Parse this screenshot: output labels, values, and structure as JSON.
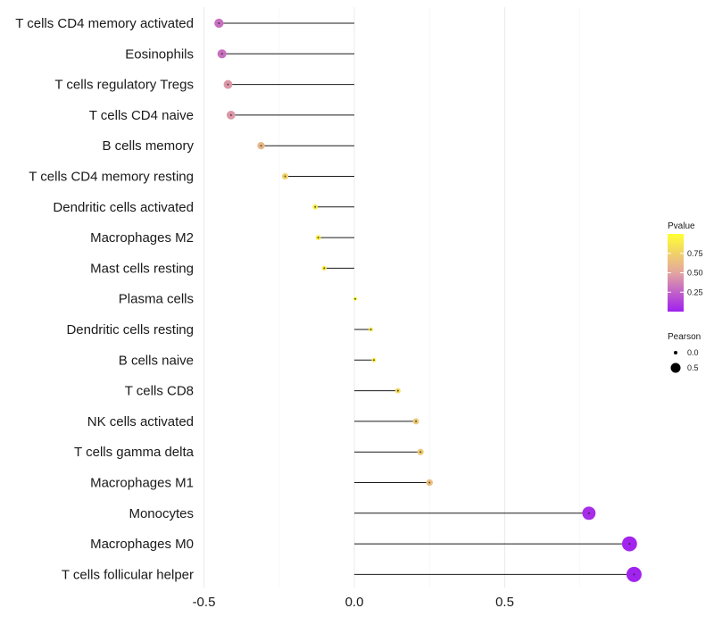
{
  "chart_data": {
    "type": "lollipop",
    "title": "",
    "xlabel": "",
    "ylabel": "",
    "xlim": [
      -0.5,
      0.95
    ],
    "x_ticks": [
      -0.5,
      0.0,
      0.5
    ],
    "x_tick_labels": [
      "-0.5",
      "0.0",
      "0.5"
    ],
    "grid": true,
    "categories": [
      "T cells CD4 memory activated",
      "Eosinophils",
      "T cells regulatory  Tregs ",
      "T cells CD4 naive",
      "B cells memory",
      "T cells CD4 memory resting",
      "Dendritic cells activated",
      "Macrophages M2",
      "Mast cells resting",
      "Plasma cells",
      "Dendritic cells resting",
      "B cells naive",
      "T cells CD8",
      "NK cells activated",
      "T cells gamma delta",
      "Macrophages M1",
      "Monocytes",
      "Macrophages M0",
      "T cells follicular helper"
    ],
    "pearson": [
      -0.45,
      -0.44,
      -0.42,
      -0.41,
      -0.31,
      -0.23,
      -0.13,
      -0.12,
      -0.1,
      0.003,
      0.055,
      0.065,
      0.145,
      0.205,
      0.22,
      0.25,
      0.78,
      0.915,
      0.93
    ],
    "pvalue": [
      0.3,
      0.3,
      0.45,
      0.45,
      0.6,
      0.75,
      0.9,
      0.9,
      0.9,
      0.99,
      0.9,
      0.9,
      0.8,
      0.7,
      0.7,
      0.65,
      0.05,
      0.02,
      0.01
    ],
    "legend_color": {
      "title": "Pvalue",
      "range": [
        0.0,
        1.0
      ],
      "ticks": [
        0.25,
        0.5,
        0.75
      ],
      "tick_labels": [
        "0.25",
        "0.50",
        "0.75"
      ],
      "low_color": "#a020f0",
      "mid_color": "#e3a5a0",
      "high_color": "#ffff33",
      "position": "right"
    },
    "legend_size": {
      "title": "Pearson",
      "values": [
        0.0,
        0.5
      ],
      "labels": [
        "0.0",
        "0.5"
      ]
    }
  }
}
